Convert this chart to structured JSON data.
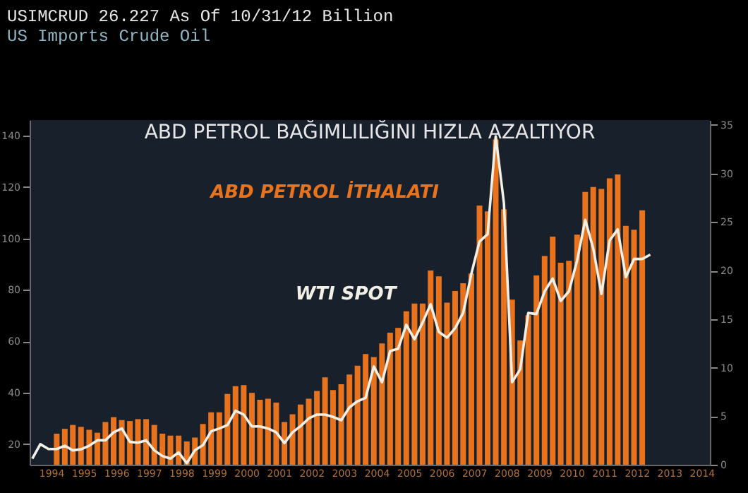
{
  "chart_data": {
    "type": "bar",
    "title": "ABD PETROL BAĞIMLILIĞINI HIZLA AZALTIYOR",
    "subtitle": "US Imports Crude Oil",
    "annotations": [
      "USIMCRUD   26.227     As Of 10/31/12   Billion"
    ],
    "xlim": [
      "1993-11-01",
      "2014-10-01"
    ],
    "xticks": [
      {
        "value": "1994-07-01",
        "label": "1994"
      },
      {
        "value": "1995-07-01",
        "label": "1995"
      },
      {
        "value": "1996-07-01",
        "label": "1996"
      },
      {
        "value": "1997-07-01",
        "label": "1997"
      },
      {
        "value": "1998-07-01",
        "label": "1998"
      },
      {
        "value": "1999-07-01",
        "label": "1999"
      },
      {
        "value": "2000-07-01",
        "label": "2000"
      },
      {
        "value": "2001-07-01",
        "label": "2001"
      },
      {
        "value": "2002-07-01",
        "label": "2002"
      },
      {
        "value": "2003-07-01",
        "label": "2003"
      },
      {
        "value": "2004-07-01",
        "label": "2004"
      },
      {
        "value": "2005-07-01",
        "label": "2005"
      },
      {
        "value": "2006-07-01",
        "label": "2006"
      },
      {
        "value": "2007-07-01",
        "label": "2007"
      },
      {
        "value": "2008-07-01",
        "label": "2008"
      },
      {
        "value": "2009-07-01",
        "label": "2009"
      },
      {
        "value": "2010-07-01",
        "label": "2010"
      },
      {
        "value": "2011-07-01",
        "label": "2011"
      },
      {
        "value": "2012-07-01",
        "label": "2012"
      },
      {
        "value": "2013-07-01",
        "label": "2013"
      },
      {
        "value": "2014-07-01",
        "label": "2014"
      }
    ],
    "ylim": [
      12,
      146
    ],
    "yticks": [
      20,
      40,
      60,
      80,
      100,
      120,
      140
    ],
    "y2lim": [
      0,
      35.5
    ],
    "y2ticks": [
      0,
      5,
      10,
      15,
      20,
      25,
      30,
      35
    ],
    "series": [
      {
        "name": "ABD PETROL İTHALATI",
        "axis": "y2",
        "color": "#e8731c",
        "x": [
          "1994-09",
          "1994-12",
          "1995-03",
          "1995-06",
          "1995-09",
          "1995-12",
          "1996-03",
          "1996-06",
          "1996-09",
          "1996-12",
          "1997-03",
          "1997-06",
          "1997-09",
          "1997-12",
          "1998-03",
          "1998-06",
          "1998-09",
          "1998-12",
          "1999-03",
          "1999-06",
          "1999-09",
          "1999-12",
          "2000-03",
          "2000-06",
          "2000-09",
          "2000-12",
          "2001-03",
          "2001-06",
          "2001-09",
          "2001-12",
          "2002-03",
          "2002-06",
          "2002-09",
          "2002-12",
          "2003-03",
          "2003-06",
          "2003-09",
          "2003-12",
          "2004-03",
          "2004-06",
          "2004-09",
          "2004-12",
          "2005-03",
          "2005-06",
          "2005-09",
          "2005-12",
          "2006-03",
          "2006-06",
          "2006-09",
          "2006-12",
          "2007-03",
          "2007-06",
          "2007-09",
          "2007-12",
          "2008-03",
          "2008-06",
          "2008-09",
          "2008-12",
          "2009-03",
          "2009-06",
          "2009-09",
          "2009-12",
          "2010-03",
          "2010-06",
          "2010-09",
          "2010-12",
          "2011-03",
          "2011-06",
          "2011-09",
          "2011-12",
          "2012-03",
          "2012-06",
          "2012-09"
        ],
        "values": [
          3.2,
          3.7,
          4.1,
          3.9,
          3.6,
          3.3,
          4.4,
          4.9,
          4.6,
          4.5,
          4.7,
          4.7,
          4.1,
          3.2,
          3.0,
          3.0,
          2.4,
          2.8,
          4.2,
          5.4,
          5.4,
          7.3,
          8.1,
          8.2,
          7.4,
          6.7,
          6.8,
          6.4,
          4.4,
          5.2,
          6.2,
          6.8,
          7.6,
          9.0,
          7.7,
          8.3,
          9.3,
          10.2,
          11.4,
          11.1,
          12.5,
          13.6,
          14.1,
          15.8,
          16.6,
          16.6,
          20.0,
          19.4,
          16.7,
          17.9,
          18.7,
          19.7,
          26.7,
          26.1,
          33.5,
          26.3,
          17.0,
          12.8,
          15.4,
          19.5,
          21.5,
          23.5,
          20.8,
          21.0,
          23.7,
          28.1,
          28.6,
          28.4,
          29.5,
          29.9,
          24.6,
          24.2,
          26.2
        ]
      },
      {
        "name": "WTI SPOT",
        "type": "line",
        "color": "#f2efe6",
        "x": [
          "1993-12",
          "1994-03",
          "1994-06",
          "1994-09",
          "1994-12",
          "1995-03",
          "1995-06",
          "1995-09",
          "1995-12",
          "1996-03",
          "1996-06",
          "1996-09",
          "1996-12",
          "1997-03",
          "1997-06",
          "1997-09",
          "1997-12",
          "1998-03",
          "1998-06",
          "1998-09",
          "1998-12",
          "1999-03",
          "1999-06",
          "1999-09",
          "1999-12",
          "2000-03",
          "2000-06",
          "2000-09",
          "2000-12",
          "2001-03",
          "2001-06",
          "2001-09",
          "2001-12",
          "2002-03",
          "2002-06",
          "2002-09",
          "2002-12",
          "2003-03",
          "2003-06",
          "2003-09",
          "2003-12",
          "2004-03",
          "2004-06",
          "2004-09",
          "2004-12",
          "2005-03",
          "2005-06",
          "2005-09",
          "2005-12",
          "2006-03",
          "2006-06",
          "2006-09",
          "2006-12",
          "2007-03",
          "2007-06",
          "2007-09",
          "2007-12",
          "2008-03",
          "2008-06",
          "2008-09",
          "2008-12",
          "2009-03",
          "2009-06",
          "2009-09",
          "2009-12",
          "2010-03",
          "2010-06",
          "2010-09",
          "2010-12",
          "2011-03",
          "2011-06",
          "2011-09",
          "2011-12",
          "2012-03",
          "2012-06",
          "2012-09",
          "2012-12"
        ],
        "values": [
          14.4,
          20.0,
          18.1,
          18.1,
          19.4,
          17.6,
          18.0,
          19.4,
          21.5,
          21.5,
          24.6,
          26.1,
          20.9,
          20.6,
          21.5,
          17.6,
          15.4,
          14.4,
          16.8,
          12.6,
          17.6,
          19.6,
          25.0,
          26.1,
          27.4,
          33.0,
          31.5,
          26.9,
          26.9,
          26.1,
          24.6,
          20.4,
          24.6,
          27.0,
          30.0,
          31.5,
          31.5,
          30.6,
          29.3,
          34.3,
          36.7,
          38.0,
          50.2,
          44.1,
          56.2,
          57.1,
          66.4,
          60.8,
          67.3,
          74.4,
          63.6,
          61.4,
          65.1,
          71.0,
          86.2,
          98.8,
          101.6,
          139.7,
          113.7,
          44.1,
          49.1,
          71.0,
          70.6,
          79.4,
          84.4,
          75.7,
          79.4,
          91.4,
          107.2,
          96.1,
          78.4,
          99.2,
          103.5,
          84.9,
          92.0,
          92.0,
          93.7
        ]
      }
    ]
  }
}
